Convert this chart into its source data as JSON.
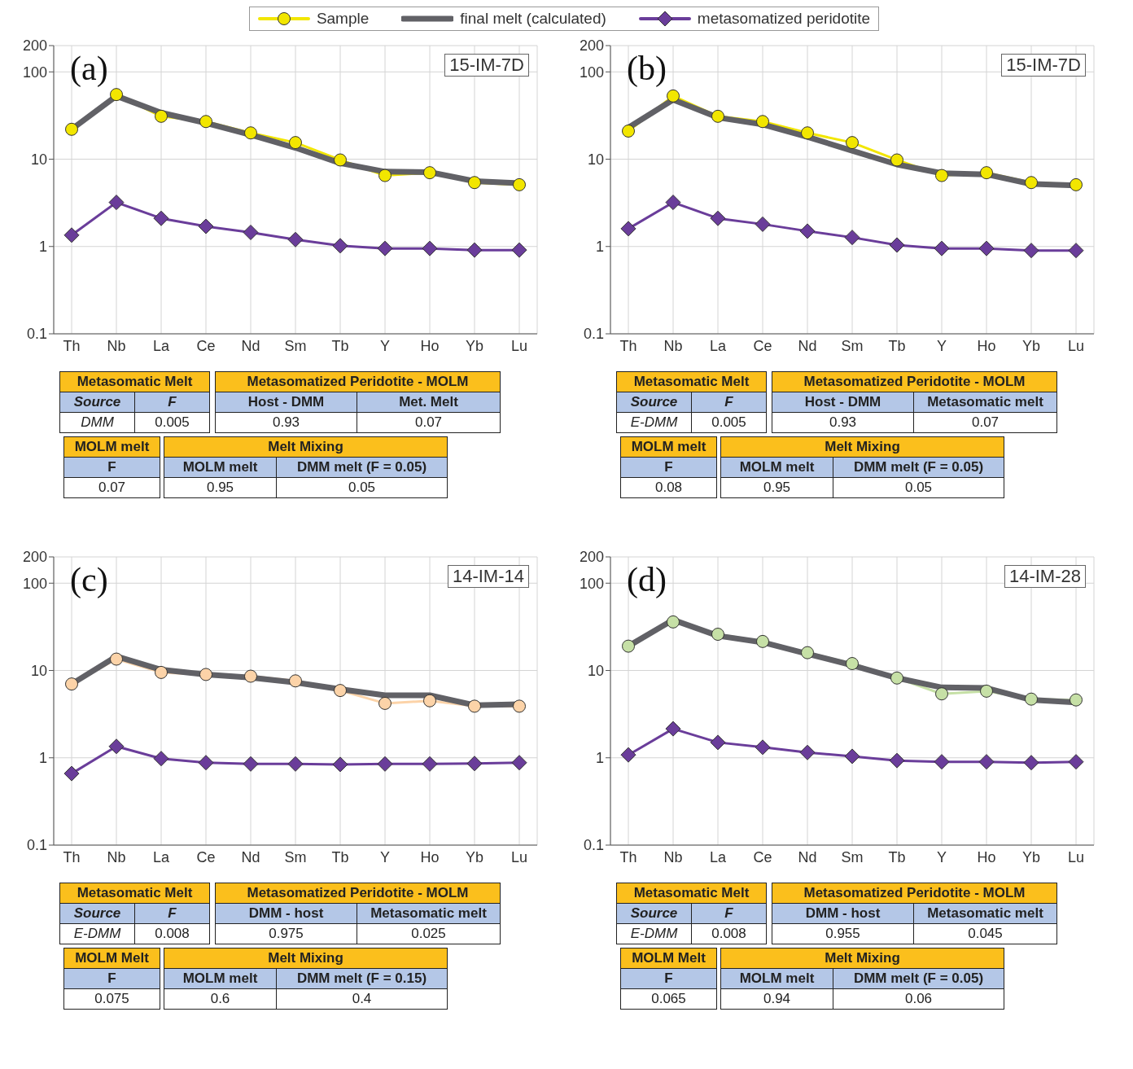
{
  "chart_data": [
    {
      "type": "line",
      "categories": [
        "Th",
        "Nb",
        "La",
        "Ce",
        "Nd",
        "Sm",
        "Tb",
        "Y",
        "Ho",
        "Yb",
        "Lu"
      ],
      "log": true,
      "ylim": [
        0.1,
        200
      ],
      "yticks": [
        0.1,
        1,
        10,
        100,
        200
      ],
      "grid": true,
      "legend": "top",
      "series": [
        {
          "name": "Sample",
          "color": "#f2e600",
          "marker": "circle",
          "values": [
            22,
            55,
            31,
            27,
            20,
            15.5,
            9.8,
            6.5,
            7,
            5.4,
            5.1
          ]
        },
        {
          "name": "final melt (calculated)",
          "color": "#616166",
          "marker": "none",
          "values": [
            22,
            53,
            34,
            26,
            19,
            13.5,
            9,
            7.2,
            7.1,
            5.6,
            5.3
          ]
        },
        {
          "name": "metasomatized peridotite",
          "color": "#6a3d9a",
          "marker": "diamond",
          "values": [
            1.35,
            3.2,
            2.1,
            1.7,
            1.45,
            1.2,
            1.02,
            0.95,
            0.95,
            0.91,
            0.91
          ]
        }
      ],
      "annotations": [
        "(a)",
        "15-IM-7D",
        "Metasomatic Melt",
        "Source",
        "F",
        "DMM",
        "0.005",
        "Metasomatized Peridotite - MOLM",
        "Host - DMM",
        "Met. Melt",
        "0.93",
        "0.07",
        "MOLM melt",
        "F",
        "0.07",
        "Melt Mixing",
        "MOLM melt",
        "DMM melt (F = 0.05)",
        "0.95",
        "0.05"
      ]
    },
    {
      "type": "line",
      "categories": [
        "Th",
        "Nb",
        "La",
        "Ce",
        "Nd",
        "Sm",
        "Tb",
        "Y",
        "Ho",
        "Yb",
        "Lu"
      ],
      "log": true,
      "ylim": [
        0.1,
        200
      ],
      "yticks": [
        0.1,
        1,
        10,
        100,
        200
      ],
      "grid": true,
      "series": [
        {
          "color": "#f2e600",
          "marker": "circle",
          "values": [
            21,
            53,
            31,
            27,
            20,
            15.5,
            9.8,
            6.5,
            7,
            5.4,
            5.1
          ]
        },
        {
          "color": "#616166",
          "marker": "none",
          "values": [
            23,
            48,
            30,
            25,
            18,
            12.5,
            8.7,
            6.9,
            6.7,
            5.2,
            5
          ]
        },
        {
          "color": "#6a3d9a",
          "marker": "diamond",
          "values": [
            1.6,
            3.2,
            2.1,
            1.8,
            1.5,
            1.27,
            1.04,
            0.95,
            0.95,
            0.9,
            0.9
          ]
        }
      ],
      "annotations": [
        "(b)",
        "15-IM-7D",
        "Metasomatic Melt",
        "Source",
        "F",
        "E-DMM",
        "0.005",
        "Metasomatized Peridotite - MOLM",
        "Host - DMM",
        "Metasomatic melt",
        "0.93",
        "0.07",
        "MOLM melt",
        "F",
        "0.08",
        "Melt Mixing",
        "MOLM melt",
        "DMM melt (F = 0.05)",
        "0.95",
        "0.05"
      ]
    },
    {
      "type": "line",
      "categories": [
        "Th",
        "Nb",
        "La",
        "Ce",
        "Nd",
        "Sm",
        "Tb",
        "Y",
        "Ho",
        "Yb",
        "Lu"
      ],
      "log": true,
      "ylim": [
        0.1,
        200
      ],
      "yticks": [
        0.1,
        1,
        10,
        100,
        200
      ],
      "grid": true,
      "series": [
        {
          "color": "#fcd3a8",
          "marker": "circle",
          "values": [
            7,
            13.5,
            9.5,
            9,
            8.6,
            7.6,
            5.9,
            4.2,
            4.5,
            3.9,
            3.9
          ]
        },
        {
          "color": "#616166",
          "marker": "none",
          "values": [
            7,
            14.5,
            10.2,
            9,
            8.3,
            7.3,
            6.1,
            5.2,
            5.2,
            4,
            4.1
          ]
        },
        {
          "color": "#6a3d9a",
          "marker": "diamond",
          "values": [
            0.66,
            1.35,
            0.98,
            0.88,
            0.85,
            0.85,
            0.84,
            0.85,
            0.85,
            0.86,
            0.88
          ]
        }
      ],
      "annotations": [
        "(c)",
        "14-IM-14",
        "Metasomatic Melt",
        "Source",
        "F",
        "E-DMM",
        "0.008",
        "Metasomatized Peridotite - MOLM",
        "DMM - host",
        "Metasomatic melt",
        "0.975",
        "0.025",
        "MOLM Melt",
        "F",
        "0.075",
        "Melt Mixing",
        "MOLM melt",
        "DMM melt (F = 0.15)",
        "0.6",
        "0.4"
      ]
    },
    {
      "type": "line",
      "categories": [
        "Th",
        "Nb",
        "La",
        "Ce",
        "Nd",
        "Sm",
        "Tb",
        "Y",
        "Ho",
        "Yb",
        "Lu"
      ],
      "log": true,
      "ylim": [
        0.1,
        200
      ],
      "yticks": [
        0.1,
        1,
        10,
        100,
        200
      ],
      "grid": true,
      "series": [
        {
          "color": "#c6e0a6",
          "marker": "circle",
          "values": [
            19,
            36,
            26,
            21.5,
            16,
            12,
            8.2,
            5.4,
            5.8,
            4.7,
            4.6
          ]
        },
        {
          "color": "#616166",
          "marker": "none",
          "values": [
            19,
            38,
            25,
            21,
            15.5,
            11.5,
            8.2,
            6.4,
            6.3,
            4.6,
            4.3
          ]
        },
        {
          "color": "#6a3d9a",
          "marker": "diamond",
          "values": [
            1.08,
            2.15,
            1.5,
            1.32,
            1.15,
            1.04,
            0.93,
            0.9,
            0.9,
            0.88,
            0.9
          ]
        }
      ],
      "annotations": [
        "(d)",
        "14-IM-28",
        "Metasomatic Melt",
        "Source",
        "F",
        "E-DMM",
        "0.008",
        "Metasomatized Peridotite - MOLM",
        "DMM - host",
        "Metasomatic melt",
        "0.955",
        "0.045",
        "MOLM Melt",
        "F",
        "0.065",
        "Melt Mixing",
        "MOLM melt",
        "DMM melt (F = 0.05)",
        "0.94",
        "0.06"
      ]
    }
  ]
}
